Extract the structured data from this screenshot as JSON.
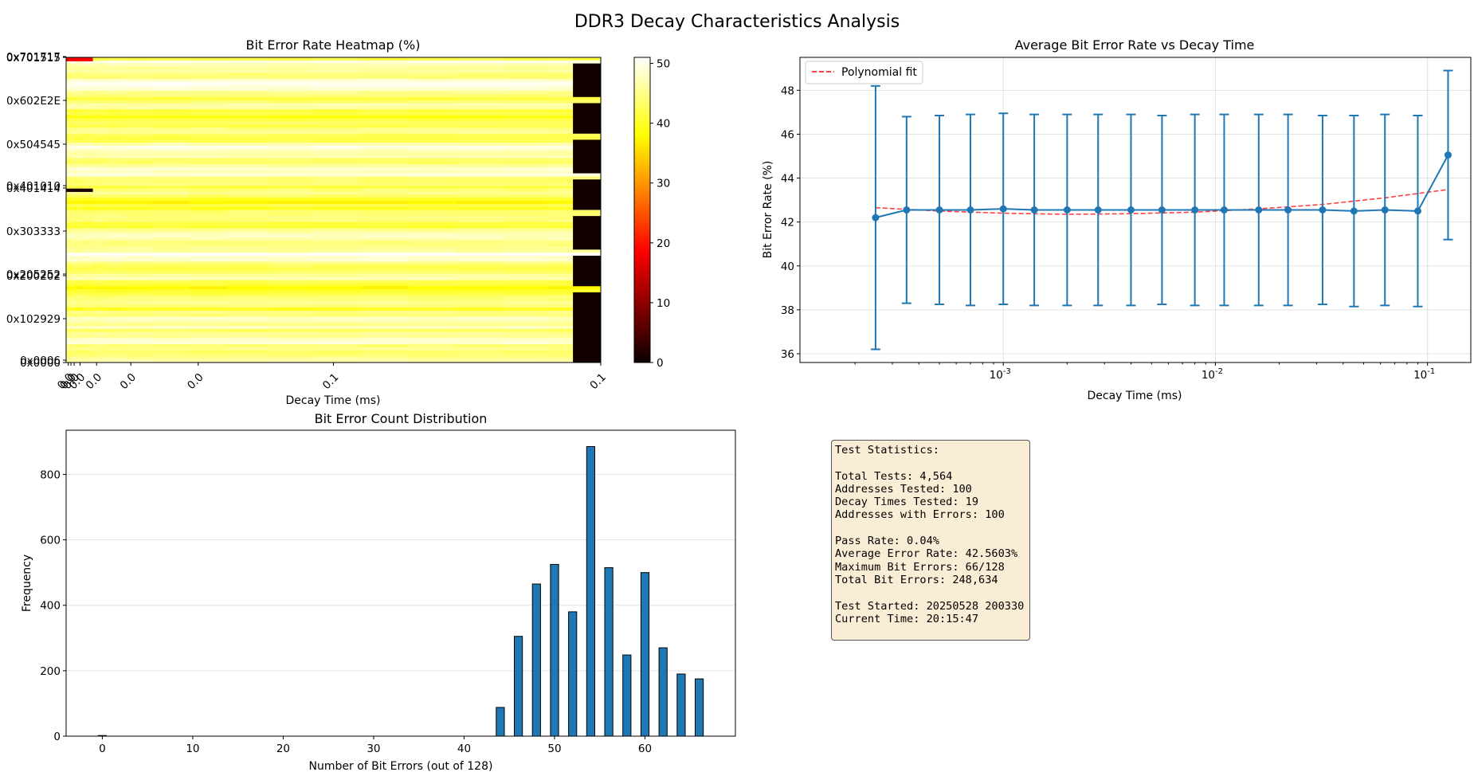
{
  "figure_title": "DDR3 Decay Characteristics Analysis",
  "colors": {
    "bar_fill": "#1f77b4",
    "line": "#1f77b4",
    "fit": "#ff0000",
    "stats_bg": "#f5deb3"
  },
  "chart_data": [
    {
      "type": "heatmap",
      "title": "Bit Error Rate Heatmap (%)",
      "xlabel": "Decay Time (ms)",
      "ylabel": "",
      "colormap": "hot",
      "colorbar_range": [
        0,
        51
      ],
      "colorbar_ticks": [
        0,
        10,
        20,
        30,
        40,
        50
      ],
      "y_tick_labels": [
        "0x0000",
        "0x0006",
        "0x102929",
        "0x200202",
        "0x205252",
        "0x303333",
        "0x401414",
        "0x401010",
        "0x504545",
        "0x602E2E",
        "0x701515",
        "0x701717"
      ],
      "x_tick_labels": [
        "0.0",
        "0.0",
        "0.0",
        "0.0",
        "0.0",
        "0.0",
        "0.0",
        "0.1",
        "0.1"
      ],
      "rows": 100,
      "columns": 19,
      "typical_value_range": [
        36,
        51
      ],
      "last_column_note": "dark bands (near 0) on alternating address blocks"
    },
    {
      "type": "line",
      "title": "Average Bit Error Rate vs Decay Time",
      "xlabel": "Decay Time (ms)",
      "ylabel": "Bit Error Rate (%)",
      "x_scale": "log",
      "xlim": [
        0.00011,
        0.16
      ],
      "ylim": [
        35.6,
        49.5
      ],
      "x_tick_labels": [
        "10^-3",
        "10^-2",
        "10^-1"
      ],
      "y_ticks": [
        36,
        38,
        40,
        42,
        44,
        46,
        48
      ],
      "grid": true,
      "legend": {
        "position": "top-left",
        "entries": [
          "Polynomial fit"
        ]
      },
      "series": [
        {
          "name": "",
          "x": [
            0.00025,
            0.00035,
            0.0005,
            0.0007,
            0.001,
            0.0014,
            0.002,
            0.0028,
            0.004,
            0.0056,
            0.008,
            0.011,
            0.016,
            0.022,
            0.032,
            0.045,
            0.063,
            0.09,
            0.125
          ],
          "y": [
            42.2,
            42.55,
            42.55,
            42.55,
            42.6,
            42.55,
            42.55,
            42.55,
            42.55,
            42.55,
            42.55,
            42.55,
            42.55,
            42.55,
            42.55,
            42.5,
            42.55,
            42.5,
            45.05
          ],
          "yerr": [
            6.0,
            4.25,
            4.3,
            4.35,
            4.35,
            4.35,
            4.35,
            4.35,
            4.35,
            4.3,
            4.35,
            4.35,
            4.35,
            4.35,
            4.3,
            4.35,
            4.35,
            4.35,
            3.85
          ]
        },
        {
          "name": "Polynomial fit",
          "style": "dashed",
          "x": [
            0.00025,
            0.0005,
            0.001,
            0.002,
            0.004,
            0.008,
            0.016,
            0.032,
            0.063,
            0.125
          ],
          "y": [
            42.65,
            42.5,
            42.4,
            42.35,
            42.38,
            42.45,
            42.6,
            42.8,
            43.1,
            43.48
          ]
        }
      ]
    },
    {
      "type": "bar",
      "title": "Bit Error Count Distribution",
      "xlabel": "Number of Bit Errors (out of 128)",
      "ylabel": "Frequency",
      "xlim": [
        -4,
        70
      ],
      "ylim": [
        0,
        935
      ],
      "x_ticks": [
        0,
        10,
        20,
        30,
        40,
        50,
        60
      ],
      "y_ticks": [
        0,
        200,
        400,
        600,
        800
      ],
      "grid": true,
      "x": [
        0,
        44,
        46,
        48,
        50,
        52,
        54,
        56,
        58,
        60,
        62,
        64,
        66
      ],
      "values": [
        2,
        88,
        305,
        465,
        525,
        380,
        885,
        515,
        248,
        500,
        270,
        190,
        175
      ]
    }
  ],
  "stats": {
    "lines": [
      "Test Statistics:",
      "",
      "Total Tests: 4,564",
      "Addresses Tested: 100",
      "Decay Times Tested: 19",
      "Addresses with Errors: 100",
      "",
      "Pass Rate: 0.04%",
      "Average Error Rate: 42.5603%",
      "Maximum Bit Errors: 66/128",
      "Total Bit Errors: 248,634",
      "",
      "Test Started: 20250528 200330",
      "Current Time: 20:15:47"
    ]
  }
}
